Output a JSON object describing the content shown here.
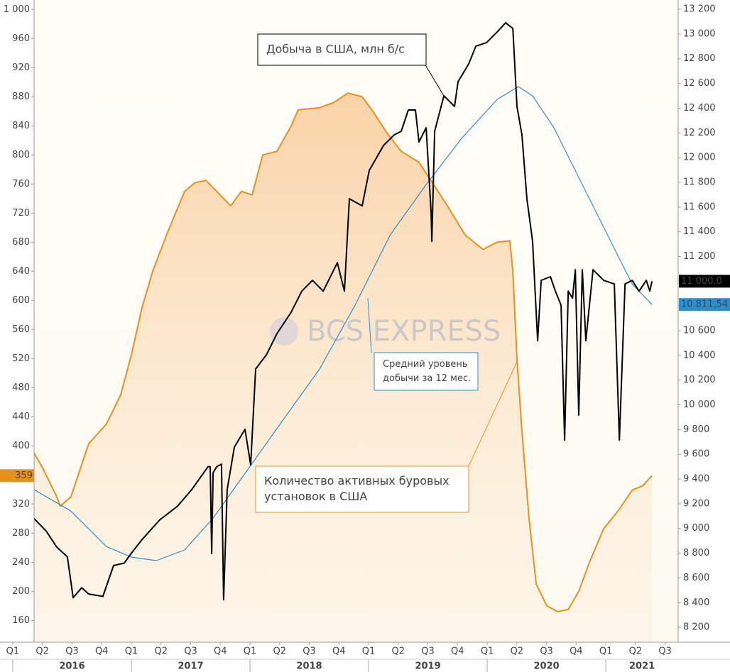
{
  "chart_data": {
    "type": "line",
    "watermark": "BCS EXPRESS",
    "xlim": [
      2016.18,
      2021.61
    ],
    "ylim": [
      130,
      1013
    ],
    "y2lim": [
      8080,
      13275
    ],
    "grid": false,
    "xticks": [
      {
        "value": 2016.0,
        "label": "Q1"
      },
      {
        "value": 2016.25,
        "label": "Q2"
      },
      {
        "value": 2016.5,
        "label": "Q3"
      },
      {
        "value": 2016.75,
        "label": "Q4"
      },
      {
        "value": 2017.0,
        "label": "Q1"
      },
      {
        "value": 2017.25,
        "label": "Q2"
      },
      {
        "value": 2017.5,
        "label": "Q3"
      },
      {
        "value": 2017.75,
        "label": "Q4"
      },
      {
        "value": 2018.0,
        "label": "Q1"
      },
      {
        "value": 2018.25,
        "label": "Q2"
      },
      {
        "value": 2018.5,
        "label": "Q3"
      },
      {
        "value": 2018.75,
        "label": "Q4"
      },
      {
        "value": 2019.0,
        "label": "Q1"
      },
      {
        "value": 2019.25,
        "label": "Q2"
      },
      {
        "value": 2019.5,
        "label": "Q3"
      },
      {
        "value": 2019.75,
        "label": "Q4"
      },
      {
        "value": 2020.0,
        "label": "Q1"
      },
      {
        "value": 2020.25,
        "label": "Q2"
      },
      {
        "value": 2020.5,
        "label": "Q3"
      },
      {
        "value": 2020.75,
        "label": "Q4"
      },
      {
        "value": 2021.0,
        "label": "Q1"
      },
      {
        "value": 2021.25,
        "label": "Q2"
      },
      {
        "value": 2021.5,
        "label": "Q3"
      }
    ],
    "year_ticks": [
      2016,
      2017,
      2018,
      2019,
      2020,
      2021
    ],
    "yticks": [
      160,
      200,
      240,
      280,
      320,
      360,
      400,
      440,
      480,
      520,
      560,
      600,
      640,
      680,
      720,
      760,
      800,
      840,
      880,
      920,
      960,
      {
        "value": 1000,
        "label": "1 000"
      }
    ],
    "y2ticks": [
      {
        "value": 8200,
        "label": "8 200"
      },
      {
        "value": 8400,
        "label": "8 400"
      },
      {
        "value": 8600,
        "label": "8 600"
      },
      {
        "value": 8800,
        "label": "8 800"
      },
      {
        "value": 9000,
        "label": "9 000"
      },
      {
        "value": 9200,
        "label": "9 200"
      },
      {
        "value": 9400,
        "label": "9 400"
      },
      {
        "value": 9600,
        "label": "9 600"
      },
      {
        "value": 9800,
        "label": "9 800"
      },
      {
        "value": 10000,
        "label": "10 000"
      },
      {
        "value": 10200,
        "label": "10 200"
      },
      {
        "value": 10400,
        "label": "10 400"
      },
      {
        "value": 10600,
        "label": "10 600"
      },
      {
        "value": 10800,
        "label": "10 800"
      },
      {
        "value": 11000,
        "label": "11 000"
      },
      {
        "value": 11200,
        "label": "11 200"
      },
      {
        "value": 11400,
        "label": "11 400"
      },
      {
        "value": 11600,
        "label": "11 600"
      },
      {
        "value": 11800,
        "label": "11 800"
      },
      {
        "value": 12000,
        "label": "12 000"
      },
      {
        "value": 12200,
        "label": "12 200"
      },
      {
        "value": 12400,
        "label": "12 400"
      },
      {
        "value": 12600,
        "label": "12 600"
      },
      {
        "value": 12800,
        "label": "12 800"
      },
      {
        "value": 13000,
        "label": "13 000"
      },
      {
        "value": 13200,
        "label": "13 200"
      }
    ],
    "series": [
      {
        "color": "#e8901e",
        "area": true,
        "axis": "y",
        "annotation": [
          "Количество активных буровых",
          "установок в США"
        ],
        "end_label": "359",
        "x": [
          2016.18,
          2016.251,
          2016.371,
          2016.401,
          2016.491,
          2016.641,
          2016.79,
          2016.91,
          2017.0,
          2017.09,
          2017.18,
          2017.299,
          2017.449,
          2017.539,
          2017.629,
          2017.719,
          2017.838,
          2017.928,
          2018.018,
          2018.108,
          2018.228,
          2018.347,
          2018.407,
          2018.587,
          2018.707,
          2018.826,
          2018.946,
          2019.036,
          2019.156,
          2019.275,
          2019.425,
          2019.545,
          2019.665,
          2019.814,
          2019.964,
          2020.084,
          2020.192,
          2020.216,
          2020.251,
          2020.293,
          2020.353,
          2020.413,
          2020.503,
          2020.593,
          2020.683,
          2020.772,
          2020.862,
          2020.982,
          2021.102,
          2021.222,
          2021.311,
          2021.389
        ],
        "values": [
          390,
          370,
          330,
          317,
          330,
          403,
          430,
          470,
          525,
          590,
          640,
          691,
          750,
          762,
          765,
          750,
          730,
          750,
          745,
          800,
          805,
          840,
          862,
          865,
          872,
          885,
          880,
          860,
          830,
          805,
          790,
          760,
          730,
          690,
          670,
          680,
          682,
          640,
          520,
          420,
          300,
          210,
          180,
          172,
          175,
          200,
          240,
          286,
          310,
          339,
          345,
          359
        ]
      },
      {
        "color": "#2a8fd0",
        "axis": "y2",
        "annotation": [
          "Средний уровень",
          "добычи за 12 мес."
        ],
        "end_label": "10 811,54",
        "x": [
          2016.18,
          2016.491,
          2016.79,
          2017.0,
          2017.21,
          2017.449,
          2017.689,
          2017.988,
          2018.287,
          2018.587,
          2018.886,
          2019.186,
          2019.485,
          2019.784,
          2020.084,
          2020.263,
          2020.383,
          2020.563,
          2020.802,
          2021.042,
          2021.222,
          2021.389
        ],
        "values": [
          9314,
          9141,
          8854,
          8768,
          8740,
          8826,
          9084,
          9486,
          9888,
          10290,
          10806,
          11380,
          11782,
          12155,
          12471,
          12574,
          12500,
          12241,
          11782,
          11323,
          10978,
          10811.54
        ]
      },
      {
        "color": "#000000",
        "axis": "y2",
        "annotation": [
          "Добыча в США, млн б/с"
        ],
        "end_label": "11 000,0",
        "x": [
          2016.18,
          2016.281,
          2016.371,
          2016.461,
          2016.509,
          2016.581,
          2016.641,
          2016.76,
          2016.85,
          2016.94,
          2017.0,
          2017.09,
          2017.24,
          2017.389,
          2017.509,
          2017.647,
          2017.665,
          2017.677,
          2017.689,
          2017.719,
          2017.76,
          2017.778,
          2017.808,
          2017.868,
          2017.958,
          2018.006,
          2018.048,
          2018.138,
          2018.228,
          2018.347,
          2018.437,
          2018.527,
          2018.617,
          2018.737,
          2018.796,
          2018.838,
          2018.946,
          2019.006,
          2019.126,
          2019.216,
          2019.275,
          2019.335,
          2019.395,
          2019.425,
          2019.485,
          2019.527,
          2019.533,
          2019.557,
          2019.635,
          2019.725,
          2019.754,
          2019.844,
          2019.904,
          2019.994,
          2020.084,
          2020.156,
          2020.216,
          2020.251,
          2020.293,
          2020.335,
          2020.383,
          2020.425,
          2020.455,
          2020.533,
          2020.575,
          2020.623,
          2020.653,
          2020.683,
          2020.719,
          2020.743,
          2020.772,
          2020.802,
          2020.832,
          2020.892,
          2020.982,
          2021.072,
          2021.114,
          2021.162,
          2021.222,
          2021.281,
          2021.341,
          2021.371,
          2021.389
        ],
        "values": [
          9080,
          8980,
          8850,
          8770,
          8440,
          8520,
          8470,
          8450,
          8700,
          8720,
          8800,
          8910,
          9070,
          9180,
          9314,
          9500,
          9500,
          8797,
          9450,
          9500,
          9520,
          8424,
          9314,
          9658,
          9802,
          9515,
          10290,
          10404,
          10577,
          10749,
          10920,
          11007,
          10920,
          11150,
          10920,
          11667,
          11610,
          11897,
          12098,
          12184,
          12213,
          12385,
          12385,
          12127,
          12241,
          11553,
          11323,
          12213,
          12500,
          12414,
          12614,
          12758,
          12901,
          12930,
          13016,
          13091,
          13045,
          12414,
          12184,
          11667,
          11323,
          10519,
          11007,
          11036,
          10920,
          10806,
          9715,
          10920,
          10863,
          11093,
          9917,
          11093,
          10519,
          11093,
          11007,
          10978,
          9715,
          10978,
          11007,
          10920,
          11007,
          10920,
          11000
        ]
      }
    ]
  }
}
